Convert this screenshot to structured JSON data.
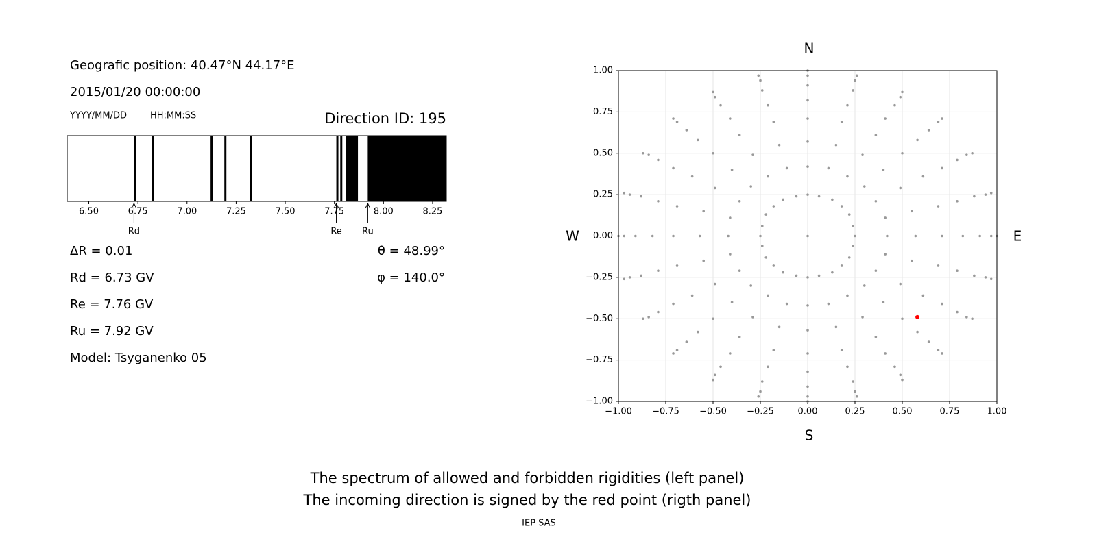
{
  "info": {
    "position": "Geografic position: 40.47°N 44.17°E",
    "datetime": "2015/01/20 00:00:00",
    "date_format": "YYYY/MM/DD",
    "time_format": "HH:MM:SS",
    "direction": "Direction ID: 195",
    "delta_r": "ΔR = 0.01",
    "theta": "θ = 48.99°",
    "phi": "φ = 140.0°",
    "rd": "Rd = 6.73 GV",
    "re": "Re = 7.76 GV",
    "ru": "Ru = 7.92 GV",
    "model": "Model: Tsyganenko 05"
  },
  "chart_data": [
    {
      "type": "spectrum",
      "color": "#000000",
      "bands_start": [
        6.73,
        6.82,
        7.12,
        7.19,
        7.32,
        7.76,
        7.78,
        7.81,
        7.92
      ],
      "bands_end": [
        6.74,
        6.83,
        7.13,
        7.2,
        7.33,
        7.77,
        7.79,
        7.87,
        8.32
      ],
      "xlim": [
        6.39,
        8.32
      ],
      "xticks": [
        {
          "value": 6.5,
          "label": "6.50"
        },
        {
          "value": 6.75,
          "label": "6.75"
        },
        {
          "value": 7,
          "label": "7.00"
        },
        {
          "value": 7.25,
          "label": "7.25"
        },
        {
          "value": 7.5,
          "label": "7.50"
        },
        {
          "value": 7.75,
          "label": "7.75"
        },
        {
          "value": 8,
          "label": "8.00"
        },
        {
          "value": 8.25,
          "label": "8.25"
        }
      ],
      "markers": [
        {
          "label": "Rd",
          "value": 6.73
        },
        {
          "label": "Re",
          "value": 7.76
        },
        {
          "label": "Ru",
          "value": 7.92
        }
      ]
    },
    {
      "type": "scatter",
      "grid": true,
      "compass": {
        "north": "N",
        "south": "S",
        "west": "W",
        "east": "E"
      },
      "xlim": [
        -1,
        1
      ],
      "ylim": [
        -1,
        1
      ],
      "xticks": [
        {
          "value": -1,
          "label": "−1.00"
        },
        {
          "value": -0.75,
          "label": "−0.75"
        },
        {
          "value": -0.5,
          "label": "−0.50"
        },
        {
          "value": -0.25,
          "label": "−0.25"
        },
        {
          "value": 0,
          "label": "0.00"
        },
        {
          "value": 0.25,
          "label": "0.25"
        },
        {
          "value": 0.5,
          "label": "0.50"
        },
        {
          "value": 0.75,
          "label": "0.75"
        },
        {
          "value": 1,
          "label": "1.00"
        }
      ],
      "yticks": [
        {
          "value": -1,
          "label": "−1.00"
        },
        {
          "value": -0.75,
          "label": "−0.75"
        },
        {
          "value": -0.5,
          "label": "−0.50"
        },
        {
          "value": -0.25,
          "label": "−0.25"
        },
        {
          "value": 0,
          "label": "0.00"
        },
        {
          "value": 0.25,
          "label": "0.25"
        },
        {
          "value": 0.5,
          "label": "0.50"
        },
        {
          "value": 0.75,
          "label": "0.75"
        },
        {
          "value": 1,
          "label": "1.00"
        }
      ],
      "series": [
        {
          "color": "#999999",
          "x": [
            0,
            0.25,
            0.24,
            0.22,
            0.18,
            0.13,
            0.06,
            0,
            -0.06,
            -0.13,
            -0.18,
            -0.22,
            -0.24,
            -0.25,
            -0.24,
            -0.22,
            -0.18,
            -0.13,
            -0.06,
            0,
            0.06,
            0.13,
            0.18,
            0.22,
            0.24
          ],
          "values": [
            0,
            0,
            0.06,
            0.13,
            0.18,
            0.22,
            0.24,
            0.25,
            0.24,
            0.22,
            0.18,
            0.13,
            0.06,
            0,
            -0.06,
            -0.13,
            -0.18,
            -0.22,
            -0.24,
            -0.25,
            -0.24,
            -0.22,
            -0.18,
            -0.13,
            -0.06
          ]
        },
        {
          "color": "#999999",
          "x": [
            0.42,
            0.41,
            0.36,
            0.3,
            0.21,
            0.11,
            0,
            -0.11,
            -0.21,
            -0.3,
            -0.36,
            -0.41,
            -0.42,
            -0.41,
            -0.36,
            -0.3,
            -0.21,
            -0.11,
            0,
            0.11,
            0.21,
            0.3,
            0.36,
            0.41
          ],
          "values": [
            0,
            0.11,
            0.21,
            0.3,
            0.36,
            0.41,
            0.42,
            0.41,
            0.36,
            0.3,
            0.21,
            0.11,
            0,
            -0.11,
            -0.21,
            -0.3,
            -0.36,
            -0.41,
            -0.42,
            -0.41,
            -0.36,
            -0.3,
            -0.21,
            -0.11
          ]
        },
        {
          "color": "#999999",
          "x": [
            0.57,
            0.55,
            0.49,
            0.4,
            0.29,
            0.15,
            0,
            -0.15,
            -0.29,
            -0.4,
            -0.49,
            -0.55,
            -0.57,
            -0.55,
            -0.49,
            -0.4,
            -0.29,
            -0.15,
            0,
            0.15,
            0.29,
            0.4,
            0.49,
            0.55
          ],
          "values": [
            0,
            0.15,
            0.29,
            0.4,
            0.49,
            0.55,
            0.57,
            0.55,
            0.49,
            0.4,
            0.29,
            0.15,
            0,
            -0.15,
            -0.29,
            -0.4,
            -0.49,
            -0.55,
            -0.57,
            -0.55,
            -0.49,
            -0.4,
            -0.29,
            -0.15
          ]
        },
        {
          "color": "#999999",
          "x": [
            0.71,
            0.69,
            0.61,
            0.5,
            0.36,
            0.18,
            0,
            -0.18,
            -0.36,
            -0.5,
            -0.61,
            -0.69,
            -0.71,
            -0.69,
            -0.61,
            -0.5,
            -0.36,
            -0.18,
            0,
            0.18,
            0.36,
            0.5,
            0.61,
            0.69
          ],
          "values": [
            0,
            0.18,
            0.36,
            0.5,
            0.61,
            0.69,
            0.71,
            0.69,
            0.61,
            0.5,
            0.36,
            0.18,
            0,
            -0.18,
            -0.36,
            -0.5,
            -0.61,
            -0.69,
            -0.71,
            -0.69,
            -0.61,
            -0.5,
            -0.36,
            -0.18
          ]
        },
        {
          "color": "#999999",
          "x": [
            0.82,
            0.79,
            0.71,
            0.58,
            0.41,
            0.21,
            0,
            -0.21,
            -0.41,
            -0.58,
            -0.71,
            -0.79,
            -0.82,
            -0.79,
            -0.71,
            -0.58,
            -0.41,
            -0.21,
            0,
            0.21,
            0.41,
            0.58,
            0.71,
            0.79
          ],
          "values": [
            0,
            0.21,
            0.41,
            0.58,
            0.71,
            0.79,
            0.82,
            0.79,
            0.71,
            0.58,
            0.41,
            0.21,
            0,
            -0.21,
            -0.41,
            -0.58,
            -0.71,
            -0.79,
            -0.82,
            -0.79,
            -0.71,
            -0.58,
            -0.41,
            -0.21
          ]
        },
        {
          "color": "#999999",
          "x": [
            0.91,
            0.88,
            0.79,
            0.64,
            0.46,
            0.24,
            0,
            -0.24,
            -0.46,
            -0.64,
            -0.79,
            -0.88,
            -0.91,
            -0.88,
            -0.79,
            -0.64,
            -0.46,
            -0.24,
            0,
            0.24,
            0.46,
            0.64,
            0.79,
            0.88
          ],
          "values": [
            0,
            0.24,
            0.46,
            0.64,
            0.79,
            0.88,
            0.91,
            0.88,
            0.79,
            0.64,
            0.46,
            0.24,
            0,
            -0.24,
            -0.46,
            -0.64,
            -0.79,
            -0.88,
            -0.91,
            -0.88,
            -0.79,
            -0.64,
            -0.46,
            -0.24
          ]
        },
        {
          "color": "#999999",
          "x": [
            0.97,
            0.94,
            0.84,
            0.69,
            0.49,
            0.25,
            0,
            -0.25,
            -0.49,
            -0.69,
            -0.84,
            -0.94,
            -0.97,
            -0.94,
            -0.84,
            -0.69,
            -0.49,
            -0.25,
            0,
            0.25,
            0.49,
            0.69,
            0.84,
            0.94
          ],
          "values": [
            0,
            0.25,
            0.49,
            0.69,
            0.84,
            0.94,
            0.97,
            0.94,
            0.84,
            0.69,
            0.49,
            0.25,
            0,
            -0.25,
            -0.49,
            -0.69,
            -0.84,
            -0.94,
            -0.97,
            -0.94,
            -0.84,
            -0.69,
            -0.49,
            -0.25
          ]
        },
        {
          "color": "#999999",
          "x": [
            1,
            0.97,
            0.87,
            0.71,
            0.5,
            0.26,
            0,
            -0.26,
            -0.5,
            -0.71,
            -0.87,
            -0.97,
            -1,
            -0.97,
            -0.87,
            -0.71,
            -0.5,
            -0.26,
            0,
            0.26,
            0.5,
            0.71,
            0.87,
            0.97
          ],
          "values": [
            0,
            0.26,
            0.5,
            0.71,
            0.87,
            0.97,
            1,
            0.97,
            0.87,
            0.71,
            0.5,
            0.26,
            0,
            -0.26,
            -0.5,
            -0.71,
            -0.87,
            -0.97,
            -1,
            -0.97,
            -0.87,
            -0.71,
            -0.5,
            -0.26
          ]
        },
        {
          "color": "#ff0000",
          "x": [
            0.58
          ],
          "values": [
            -0.49
          ]
        }
      ]
    }
  ],
  "footer": {
    "line1": "The spectrum of allowed and forbidden rigidities (left panel)",
    "line2": "The incoming direction is signed by the red point (rigth panel)",
    "credit": "IEP SAS"
  }
}
